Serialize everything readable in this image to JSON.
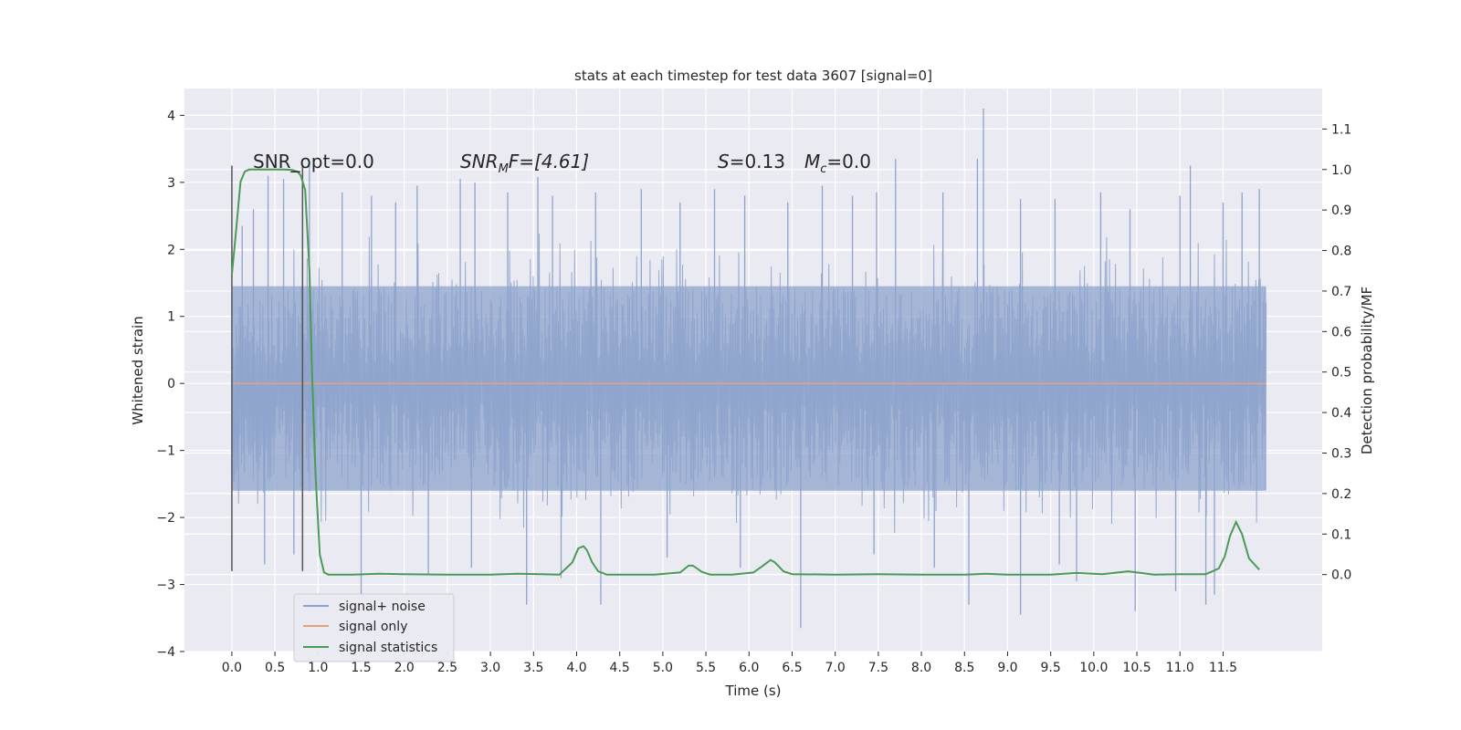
{
  "chart_data": {
    "type": "line",
    "title": "stats at each timestep for test data 3607 [signal=0]",
    "xlabel": "Time (s)",
    "ylabel": "Whitened strain",
    "ylabel_right": "Detection probability/MF",
    "xlim": [
      -0.55,
      12.65
    ],
    "ylim": [
      -4.0,
      4.4
    ],
    "ylim_right": [
      -0.19,
      1.2
    ],
    "x_ticks": [
      "0.0",
      "0.5",
      "1.0",
      "1.5",
      "2.0",
      "2.5",
      "3.0",
      "3.5",
      "4.0",
      "4.5",
      "5.0",
      "5.5",
      "6.0",
      "6.5",
      "7.0",
      "7.5",
      "8.0",
      "8.5",
      "9.0",
      "9.5",
      "10.0",
      "10.5",
      "11.0",
      "11.5"
    ],
    "y_ticks": [
      "4",
      "3",
      "2",
      "1",
      "0",
      "−1",
      "−2",
      "−3",
      "−4"
    ],
    "y_ticks_right": [
      "1.1",
      "1.0",
      "0.9",
      "0.8",
      "0.7",
      "0.6",
      "0.5",
      "0.4",
      "0.3",
      "0.2",
      "0.1",
      "0.0"
    ],
    "grid": true,
    "legend_position": "lower-left",
    "annotations": {
      "snr_opt": "SNR_opt=0.0",
      "snr_mf_main": "SNR",
      "snr_mf_sub": "M",
      "snr_mf_rest": "F=[4.61]",
      "s_label": "S",
      "s_value": "=0.13",
      "mc_main": "M",
      "mc_sub": "c",
      "mc_value": "=0.0"
    },
    "window_markers": {
      "x": [
        0.0,
        0.82
      ],
      "y_range": [
        -2.8,
        3.25
      ]
    },
    "series": [
      {
        "name": "signal+ noise",
        "color": "#8ea3cc",
        "axis": "left",
        "t_range": [
          0.0,
          12.0
        ],
        "envelope_dense": [
          -1.6,
          1.45
        ],
        "spike_peaks": [
          [
            0.12,
            2.35
          ],
          [
            0.25,
            2.6
          ],
          [
            0.42,
            3.1
          ],
          [
            0.6,
            3.05
          ],
          [
            0.9,
            3.3
          ],
          [
            1.28,
            2.85
          ],
          [
            1.62,
            2.8
          ],
          [
            1.9,
            2.7
          ],
          [
            2.15,
            2.95
          ],
          [
            2.65,
            3.05
          ],
          [
            2.82,
            3.0
          ],
          [
            3.2,
            2.85
          ],
          [
            3.55,
            3.08
          ],
          [
            3.72,
            2.8
          ],
          [
            4.22,
            2.85
          ],
          [
            4.75,
            2.9
          ],
          [
            5.2,
            2.7
          ],
          [
            5.6,
            2.9
          ],
          [
            5.95,
            2.8
          ],
          [
            6.45,
            2.7
          ],
          [
            6.85,
            2.95
          ],
          [
            7.2,
            2.8
          ],
          [
            7.48,
            2.85
          ],
          [
            7.7,
            3.35
          ],
          [
            8.25,
            2.85
          ],
          [
            8.65,
            3.35
          ],
          [
            8.72,
            4.1
          ],
          [
            9.15,
            2.75
          ],
          [
            9.55,
            2.75
          ],
          [
            10.08,
            2.85
          ],
          [
            10.42,
            2.6
          ],
          [
            11.0,
            2.8
          ],
          [
            11.12,
            3.25
          ],
          [
            11.5,
            2.7
          ],
          [
            11.72,
            2.85
          ],
          [
            11.92,
            2.9
          ]
        ],
        "spike_troughs": [
          [
            0.38,
            -2.7
          ],
          [
            0.72,
            -2.55
          ],
          [
            1.5,
            -3.2
          ],
          [
            2.28,
            -2.85
          ],
          [
            2.78,
            -2.75
          ],
          [
            3.42,
            -3.3
          ],
          [
            3.82,
            -2.9
          ],
          [
            4.28,
            -3.3
          ],
          [
            5.05,
            -2.6
          ],
          [
            5.9,
            -2.75
          ],
          [
            6.6,
            -3.65
          ],
          [
            7.45,
            -2.55
          ],
          [
            8.15,
            -2.75
          ],
          [
            8.55,
            -3.3
          ],
          [
            9.15,
            -3.45
          ],
          [
            9.6,
            -2.7
          ],
          [
            9.8,
            -2.95
          ],
          [
            10.48,
            -3.4
          ],
          [
            10.95,
            -3.1
          ],
          [
            11.3,
            -3.3
          ],
          [
            11.4,
            -3.15
          ]
        ]
      },
      {
        "name": "signal only",
        "color": "#e8a07c",
        "axis": "left",
        "x": [
          0.0,
          12.0
        ],
        "y": [
          0.0,
          0.0
        ]
      },
      {
        "name": "signal statistics",
        "color": "#4c9a57",
        "axis": "right",
        "x": [
          0.0,
          0.05,
          0.1,
          0.15,
          0.2,
          0.3,
          0.45,
          0.6,
          0.7,
          0.76,
          0.8,
          0.85,
          0.9,
          0.93,
          0.97,
          1.02,
          1.07,
          1.12,
          1.4,
          1.7,
          2.0,
          2.5,
          3.0,
          3.3,
          3.6,
          3.8,
          3.95,
          4.02,
          4.08,
          4.12,
          4.18,
          4.25,
          4.35,
          4.5,
          4.9,
          5.2,
          5.3,
          5.35,
          5.45,
          5.55,
          5.8,
          6.05,
          6.15,
          6.25,
          6.3,
          6.4,
          6.5,
          7.0,
          7.5,
          8.0,
          8.5,
          8.75,
          9.0,
          9.5,
          9.8,
          10.1,
          10.4,
          10.7,
          11.0,
          11.3,
          11.45,
          11.52,
          11.58,
          11.65,
          11.72,
          11.8,
          11.92
        ],
        "y": [
          0.74,
          0.85,
          0.97,
          0.995,
          1.0,
          1.0,
          1.0,
          1.0,
          0.999,
          0.995,
          0.985,
          0.95,
          0.75,
          0.5,
          0.25,
          0.05,
          0.005,
          0.0,
          0.0,
          0.002,
          0.001,
          0.0,
          0.0,
          0.002,
          0.001,
          0.0,
          0.03,
          0.065,
          0.07,
          0.06,
          0.03,
          0.008,
          0.0,
          0.0,
          0.0,
          0.005,
          0.022,
          0.022,
          0.007,
          0.0,
          0.0,
          0.005,
          0.02,
          0.036,
          0.03,
          0.008,
          0.001,
          0.0,
          0.001,
          0.0,
          0.0,
          0.002,
          0.0,
          0.0,
          0.004,
          0.001,
          0.008,
          0.0,
          0.001,
          0.001,
          0.015,
          0.045,
          0.095,
          0.13,
          0.1,
          0.04,
          0.012
        ]
      }
    ]
  }
}
